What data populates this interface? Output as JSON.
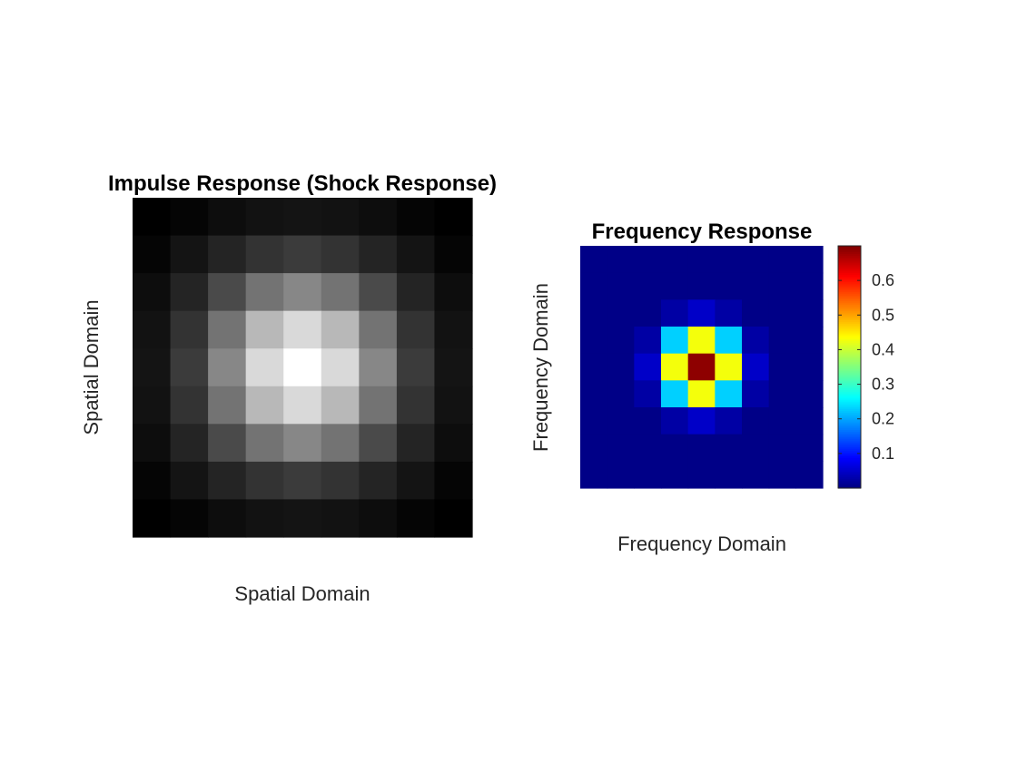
{
  "chart_data": [
    {
      "type": "heatmap",
      "colormap": "gray",
      "title": "Impulse Response (Shock Response)",
      "xlabel": "Spatial Domain",
      "ylabel": "Spatial Domain",
      "ticks_visible": false,
      "clim": [
        0,
        1
      ],
      "rows": 9,
      "cols": 9,
      "values": [
        [
          0.0,
          0.02,
          0.05,
          0.07,
          0.08,
          0.07,
          0.05,
          0.02,
          0.0
        ],
        [
          0.02,
          0.08,
          0.14,
          0.2,
          0.23,
          0.2,
          0.14,
          0.08,
          0.02
        ],
        [
          0.05,
          0.14,
          0.29,
          0.45,
          0.53,
          0.45,
          0.29,
          0.14,
          0.05
        ],
        [
          0.07,
          0.2,
          0.45,
          0.72,
          0.85,
          0.72,
          0.45,
          0.2,
          0.07
        ],
        [
          0.08,
          0.23,
          0.53,
          0.85,
          1.0,
          0.85,
          0.53,
          0.23,
          0.08
        ],
        [
          0.07,
          0.2,
          0.45,
          0.72,
          0.85,
          0.72,
          0.45,
          0.2,
          0.07
        ],
        [
          0.05,
          0.14,
          0.29,
          0.45,
          0.53,
          0.45,
          0.29,
          0.14,
          0.05
        ],
        [
          0.02,
          0.08,
          0.14,
          0.2,
          0.23,
          0.2,
          0.14,
          0.08,
          0.02
        ],
        [
          0.0,
          0.02,
          0.05,
          0.07,
          0.08,
          0.07,
          0.05,
          0.02,
          0.0
        ]
      ]
    },
    {
      "type": "heatmap",
      "colormap": "jet",
      "title": "Frequency Response",
      "xlabel": "Frequency Domain",
      "ylabel": "Frequency Domain",
      "ticks_visible": false,
      "clim": [
        0,
        0.7
      ],
      "rows": 9,
      "cols": 9,
      "values": [
        [
          0.005,
          0.005,
          0.005,
          0.005,
          0.005,
          0.005,
          0.005,
          0.005,
          0.005
        ],
        [
          0.005,
          0.005,
          0.005,
          0.005,
          0.005,
          0.005,
          0.005,
          0.005,
          0.005
        ],
        [
          0.005,
          0.005,
          0.005,
          0.025,
          0.05,
          0.025,
          0.005,
          0.005,
          0.005
        ],
        [
          0.005,
          0.005,
          0.025,
          0.23,
          0.43,
          0.23,
          0.025,
          0.005,
          0.005
        ],
        [
          0.005,
          0.005,
          0.05,
          0.43,
          0.69,
          0.43,
          0.05,
          0.005,
          0.005
        ],
        [
          0.005,
          0.005,
          0.025,
          0.23,
          0.43,
          0.23,
          0.025,
          0.005,
          0.005
        ],
        [
          0.005,
          0.005,
          0.005,
          0.025,
          0.05,
          0.025,
          0.005,
          0.005,
          0.005
        ],
        [
          0.005,
          0.005,
          0.005,
          0.005,
          0.005,
          0.005,
          0.005,
          0.005,
          0.005
        ],
        [
          0.005,
          0.005,
          0.005,
          0.005,
          0.005,
          0.005,
          0.005,
          0.005,
          0.005
        ]
      ],
      "colorbar": {
        "location": "right",
        "range": [
          0,
          0.7
        ],
        "ticks": [
          0.1,
          0.2,
          0.3,
          0.4,
          0.5,
          0.6
        ],
        "tick_labels": [
          "0.1",
          "0.2",
          "0.3",
          "0.4",
          "0.5",
          "0.6"
        ]
      }
    }
  ]
}
